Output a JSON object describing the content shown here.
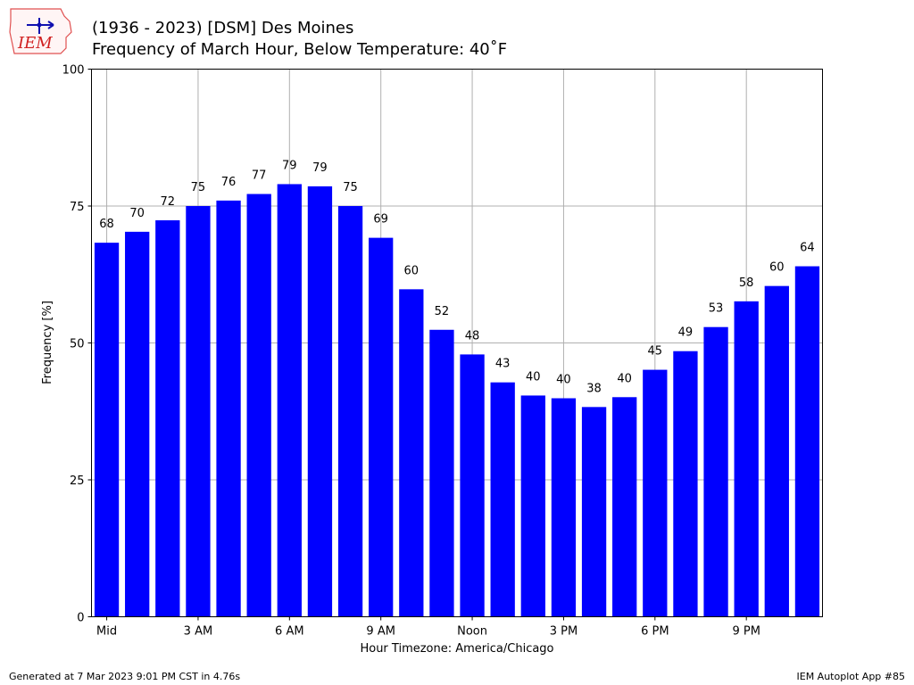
{
  "logo_text": "IEM",
  "title": {
    "line1": "(1936 - 2023) [DSM] Des Moines",
    "line2": "Frequency of March Hour, Below Temperature: 40˚F"
  },
  "footer": {
    "left": "Generated at 7 Mar 2023 9:01 PM CST in 4.76s",
    "right": "IEM Autoplot App #85"
  },
  "colors": {
    "bar": "#0000ff",
    "grid": "#b0b0b0"
  },
  "chart_data": {
    "type": "bar",
    "x": [
      0,
      1,
      2,
      3,
      4,
      5,
      6,
      7,
      8,
      9,
      10,
      11,
      12,
      13,
      14,
      15,
      16,
      17,
      18,
      19,
      20,
      21,
      22,
      23
    ],
    "values": [
      68.3,
      70.3,
      72.4,
      75.0,
      76.0,
      77.2,
      79.0,
      78.6,
      75.0,
      69.2,
      59.8,
      52.4,
      47.9,
      42.8,
      40.4,
      39.9,
      38.3,
      40.1,
      45.1,
      48.5,
      52.9,
      57.6,
      60.4,
      64.0
    ],
    "data_labels": [
      "68",
      "70",
      "72",
      "75",
      "76",
      "77",
      "79",
      "79",
      "75",
      "69",
      "60",
      "52",
      "48",
      "43",
      "40",
      "40",
      "38",
      "40",
      "45",
      "49",
      "53",
      "58",
      "60",
      "64"
    ],
    "xticks": [
      0,
      3,
      6,
      9,
      12,
      15,
      18,
      21
    ],
    "xtick_labels": [
      "Mid",
      "3 AM",
      "6 AM",
      "9 AM",
      "Noon",
      "3 PM",
      "6 PM",
      "9 PM"
    ],
    "yticks": [
      0,
      25,
      50,
      75,
      100
    ],
    "ytick_labels": [
      "0",
      "25",
      "50",
      "75",
      "100"
    ],
    "xlabel": "Hour Timezone: America/Chicago",
    "ylabel": "Frequency [%]",
    "ylim": [
      0,
      100
    ],
    "grid": true
  }
}
